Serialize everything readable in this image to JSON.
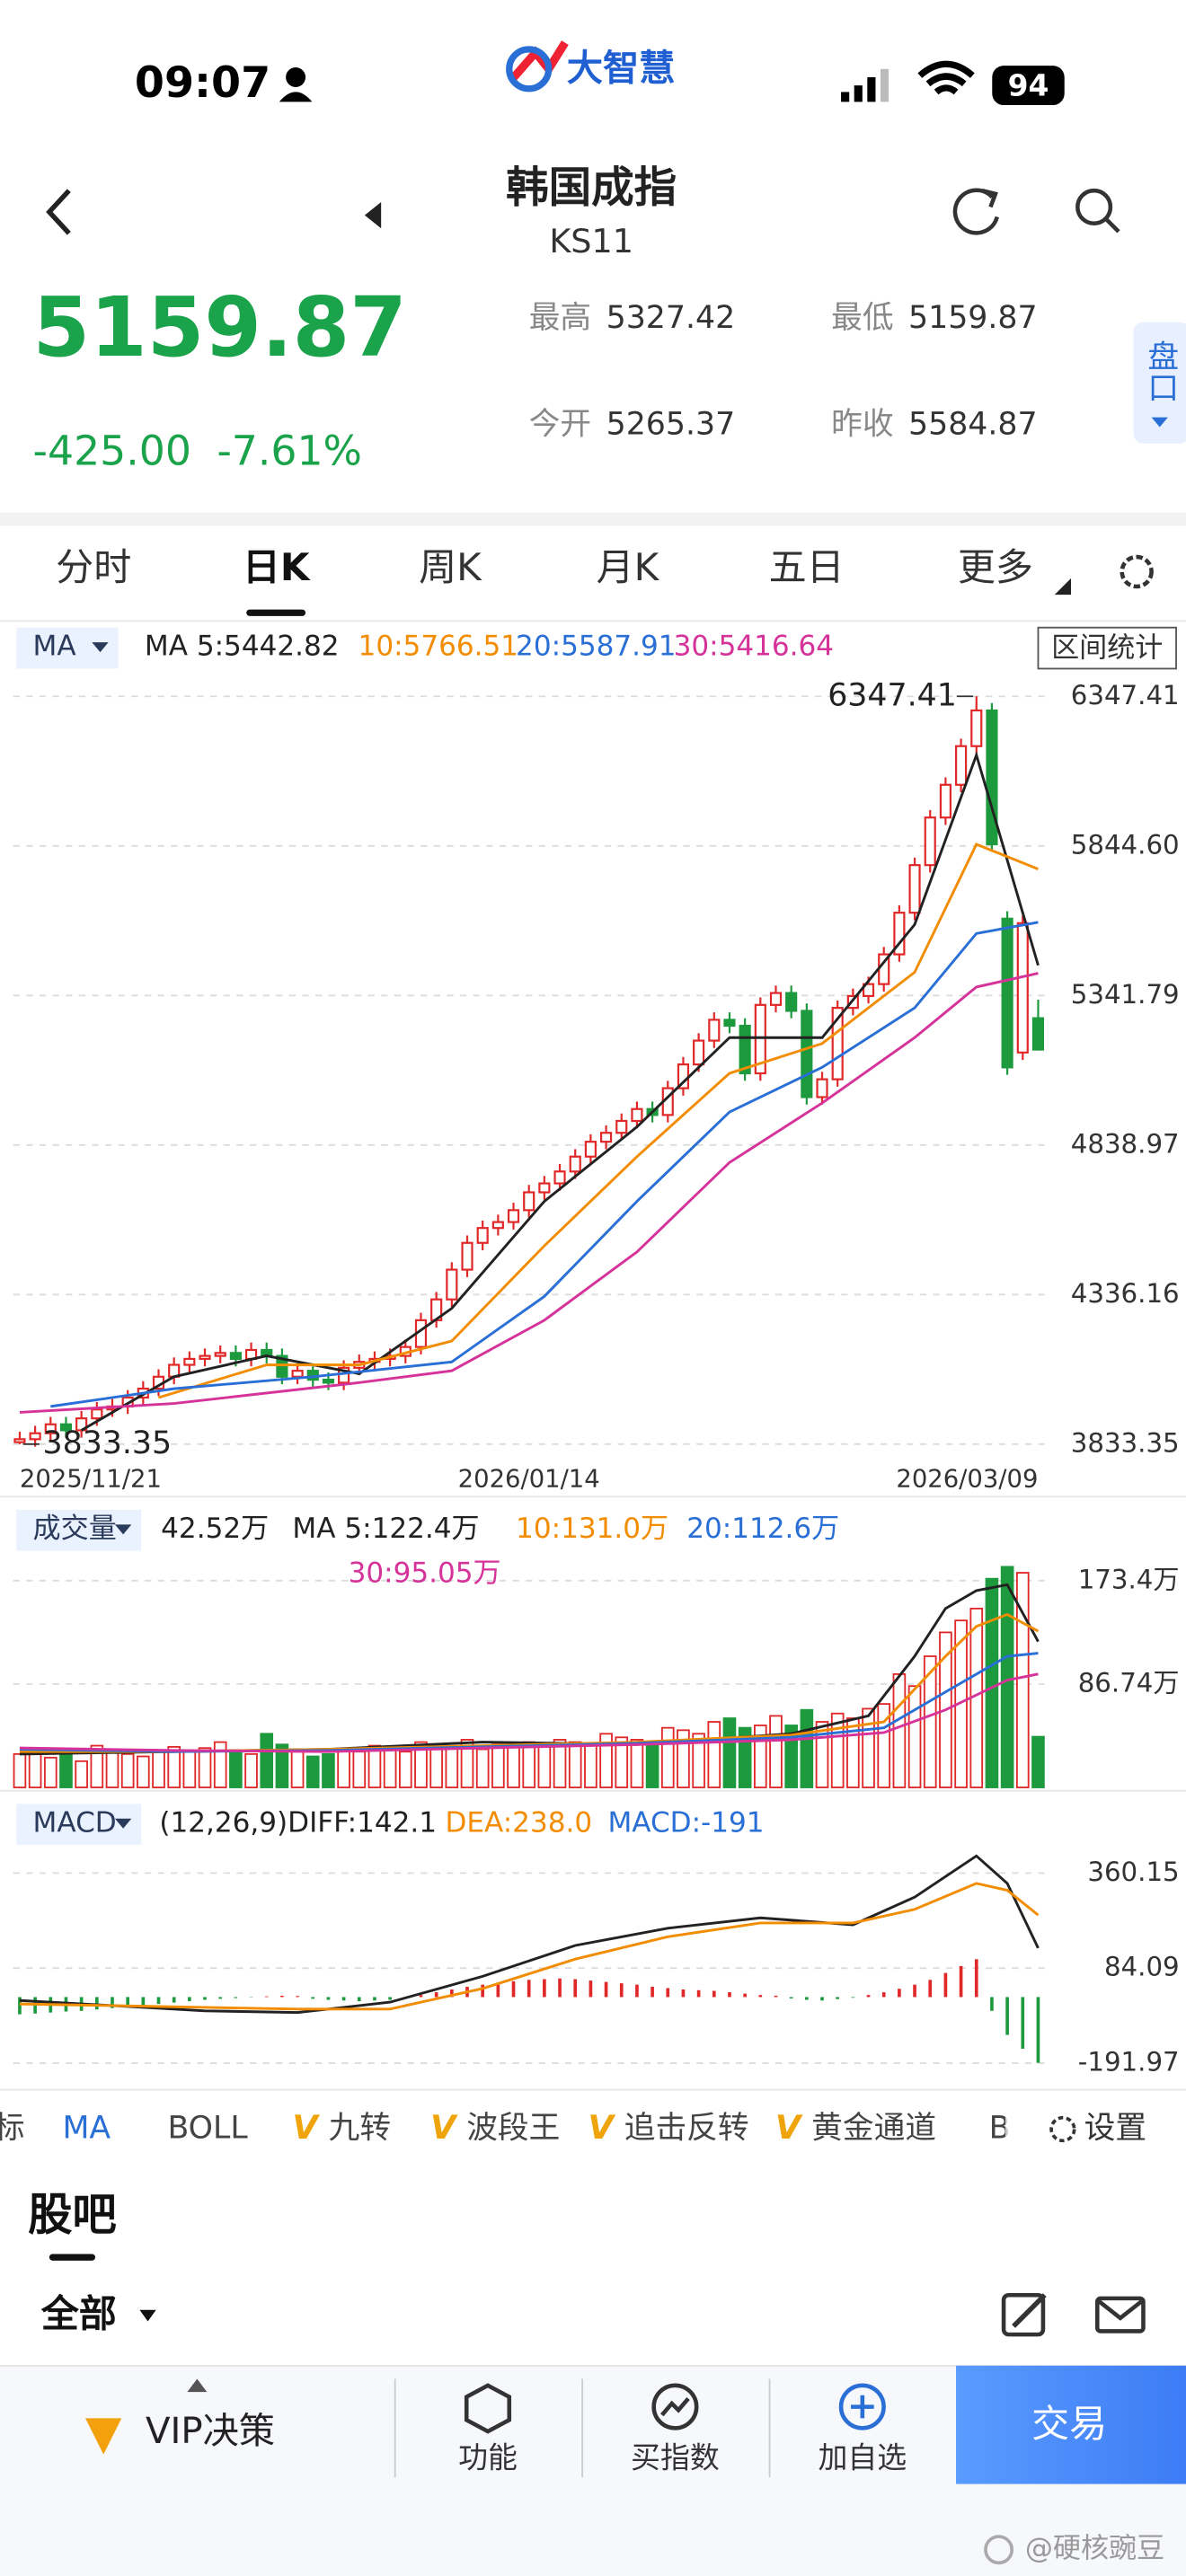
{
  "status_bar": {
    "time": "09:07",
    "battery": "94"
  },
  "logo": "大智慧",
  "header": {
    "title": "韩国成指",
    "code": "KS11",
    "price": "5159.87",
    "change": "-425.00",
    "change_pct": "-7.61%",
    "stats": [
      {
        "label": "最高",
        "value": "5327.42"
      },
      {
        "label": "最低",
        "value": "5159.87"
      },
      {
        "label": "今开",
        "value": "5265.37"
      },
      {
        "label": "昨收",
        "value": "5584.87"
      }
    ],
    "side_tab": "盘口"
  },
  "period_tabs": [
    "分时",
    "日K",
    "周K",
    "月K",
    "五日",
    "更多"
  ],
  "active_tab": 1,
  "chart_data": [
    {
      "type": "candlestick",
      "selector": "MA",
      "range_button": "区间统计",
      "categories": [
        "2025/11/21",
        null,
        null,
        null,
        null,
        null,
        null,
        null,
        null,
        null,
        null,
        null,
        null,
        null,
        null,
        null,
        null,
        null,
        null,
        null,
        null,
        null,
        null,
        null,
        null,
        null,
        null,
        null,
        null,
        null,
        null,
        null,
        null,
        "2026/01/14",
        null,
        null,
        null,
        null,
        null,
        null,
        null,
        null,
        null,
        null,
        null,
        null,
        null,
        null,
        null,
        null,
        null,
        null,
        null,
        null,
        null,
        null,
        null,
        null,
        null,
        null,
        null,
        null,
        null,
        null,
        null,
        null,
        "2026/03/09"
      ],
      "open": [
        3840,
        3850,
        3870,
        3900,
        3880,
        3920,
        3950,
        3960,
        3990,
        4020,
        4060,
        4100,
        4120,
        4130,
        4140,
        4120,
        4150,
        4130,
        4060,
        4080,
        4050,
        4040,
        4090,
        4110,
        4120,
        4130,
        4160,
        4250,
        4320,
        4420,
        4510,
        4560,
        4580,
        4620,
        4680,
        4710,
        4750,
        4800,
        4850,
        4880,
        4920,
        4960,
        4940,
        5030,
        5110,
        5190,
        5260,
        5240,
        5080,
        5310,
        5350,
        5290,
        5000,
        5060,
        5300,
        5340,
        5380,
        5480,
        5620,
        5780,
        5940,
        6050,
        6180,
        6300,
        5600,
        5150,
        5265.37
      ],
      "high": [
        3875,
        3895,
        3925,
        3925,
        3945,
        3975,
        3985,
        4015,
        4045,
        4085,
        4125,
        4145,
        4155,
        4165,
        4165,
        4175,
        4175,
        4155,
        4105,
        4105,
        4075,
        4115,
        4135,
        4145,
        4155,
        4185,
        4275,
        4345,
        4445,
        4535,
        4585,
        4605,
        4645,
        4705,
        4735,
        4775,
        4825,
        4875,
        4905,
        4945,
        4985,
        4985,
        5055,
        5135,
        5215,
        5285,
        5285,
        5265,
        5335,
        5375,
        5375,
        5315,
        5085,
        5325,
        5365,
        5405,
        5505,
        5645,
        5805,
        5965,
        6075,
        6205,
        6347.41,
        6325,
        5625,
        5610,
        5327.42
      ],
      "low": [
        3833.35,
        3825,
        3845,
        3855,
        3855,
        3895,
        3925,
        3935,
        3965,
        3995,
        4035,
        4075,
        4095,
        4105,
        4095,
        4095,
        4105,
        4035,
        4035,
        4025,
        4015,
        4015,
        4065,
        4085,
        4095,
        4105,
        4135,
        4225,
        4295,
        4395,
        4485,
        4535,
        4555,
        4595,
        4655,
        4685,
        4725,
        4775,
        4825,
        4855,
        4895,
        4915,
        4915,
        5005,
        5085,
        5165,
        5215,
        5055,
        5055,
        5285,
        5265,
        4975,
        4975,
        5035,
        5275,
        5315,
        5355,
        5455,
        5595,
        5755,
        5915,
        6025,
        6155,
        5825,
        5075,
        5125,
        5159.87
      ],
      "close": [
        3850,
        3870,
        3900,
        3880,
        3920,
        3950,
        3960,
        3990,
        4020,
        4060,
        4100,
        4120,
        4130,
        4140,
        4120,
        4150,
        4130,
        4060,
        4080,
        4050,
        4040,
        4090,
        4110,
        4120,
        4130,
        4160,
        4250,
        4320,
        4420,
        4510,
        4560,
        4580,
        4620,
        4680,
        4710,
        4750,
        4800,
        4850,
        4880,
        4920,
        4960,
        4940,
        5030,
        5110,
        5190,
        5260,
        5240,
        5080,
        5310,
        5350,
        5290,
        5000,
        5060,
        5300,
        5340,
        5380,
        5480,
        5620,
        5780,
        5940,
        6050,
        6180,
        6300,
        5850,
        5100,
        5584.87,
        5159.87
      ],
      "up_color": "#e02828",
      "down_color": "#1e9a3e",
      "ylim": [
        3690,
        6435
      ],
      "yticks": [
        6347.41,
        {
          "value": 5844.6,
          "label": "5844.60"
        },
        5341.79,
        4838.97,
        4336.16,
        3833.35
      ],
      "grid": true,
      "annotations": [
        {
          "label": "6347.41",
          "x": 62,
          "value": 6347.41
        },
        {
          "label": "3833.35",
          "x": 0,
          "value": 3833.35
        }
      ],
      "series": [
        {
          "name": "MA 5:5442.82",
          "color": "#222222",
          "x": [
            4,
            10,
            16,
            22,
            28,
            34,
            40,
            46,
            52,
            58,
            62,
            66
          ],
          "values": [
            3880,
            4060,
            4130,
            4070,
            4290,
            4650,
            4900,
            5200,
            5200,
            5580,
            6150,
            5442.82
          ]
        },
        {
          "name": "10:5766.51",
          "color": "#f28c00",
          "x": [
            9,
            16,
            22,
            28,
            34,
            40,
            46,
            52,
            58,
            62,
            66
          ],
          "values": [
            3990,
            4100,
            4100,
            4180,
            4500,
            4800,
            5080,
            5180,
            5420,
            5850,
            5766.51
          ]
        },
        {
          "name": "20:5587.91",
          "color": "#2a6fd6",
          "x": [
            2,
            10,
            19,
            28,
            34,
            40,
            46,
            52,
            58,
            62,
            66
          ],
          "values": [
            3960,
            4020,
            4060,
            4110,
            4330,
            4650,
            4950,
            5100,
            5300,
            5550,
            5587.91
          ]
        },
        {
          "name": "30:5416.64",
          "color": "#d6339a",
          "x": [
            0,
            10,
            22,
            28,
            34,
            40,
            46,
            52,
            58,
            62,
            66
          ],
          "values": [
            3940,
            3970,
            4040,
            4080,
            4250,
            4480,
            4780,
            4980,
            5200,
            5370,
            5416.64
          ]
        }
      ]
    },
    {
      "type": "bar",
      "selector": "成交量",
      "current_label": "42.52万",
      "values": [
        28,
        32,
        25,
        30,
        22,
        35,
        30,
        28,
        26,
        30,
        34,
        30,
        33,
        38,
        30,
        28,
        45,
        36,
        30,
        26,
        28,
        32,
        30,
        35,
        33,
        30,
        38,
        36,
        34,
        40,
        32,
        36,
        34,
        38,
        35,
        40,
        38,
        36,
        45,
        42,
        40,
        38,
        50,
        48,
        45,
        55,
        58,
        50,
        52,
        60,
        52,
        65,
        55,
        62,
        58,
        66,
        70,
        95,
        85,
        110,
        130,
        140,
        150,
        175,
        185,
        180,
        42.52
      ],
      "up_color": "#e02828",
      "down_color": "#1e9a3e",
      "ylim": [
        0,
        197
      ],
      "yticks": [
        {
          "value": 173.4,
          "label": "173.4万"
        },
        {
          "value": 86.74,
          "label": "86.74万"
        }
      ],
      "grid": true,
      "series": [
        {
          "name": "MA 5:122.4万",
          "color": "#222222",
          "x": [
            0,
            10,
            20,
            30,
            40,
            50,
            55,
            58,
            60,
            62,
            64,
            66
          ],
          "values": [
            28,
            30,
            32,
            38,
            36,
            45,
            60,
            110,
            150,
            165,
            170,
            122.4
          ]
        },
        {
          "name": "10:131.0万",
          "color": "#f28c00",
          "x": [
            0,
            10,
            20,
            30,
            40,
            50,
            56,
            60,
            62,
            64,
            66
          ],
          "values": [
            30,
            30,
            32,
            35,
            38,
            44,
            55,
            110,
            135,
            145,
            131.0
          ]
        },
        {
          "name": "20:112.6万",
          "color": "#2a6fd6",
          "x": [
            0,
            10,
            20,
            30,
            40,
            50,
            56,
            60,
            64,
            66
          ],
          "values": [
            32,
            30,
            31,
            34,
            37,
            42,
            50,
            80,
            110,
            112.6
          ]
        },
        {
          "name": "30:95.05万",
          "color": "#d6339a",
          "x": [
            0,
            10,
            20,
            30,
            40,
            50,
            56,
            60,
            64,
            66
          ],
          "values": [
            33,
            31,
            30,
            33,
            36,
            40,
            46,
            65,
            90,
            95.05
          ]
        }
      ]
    },
    {
      "type": "macd",
      "selector": "MACD",
      "histogram": {
        "name": "MACD:-191",
        "legend_color": "#2a6fd6",
        "up_color": "#e02828",
        "down_color": "#1e9a3e",
        "values": [
          -50,
          -48,
          -45,
          -42,
          -40,
          -36,
          -32,
          -28,
          -24,
          -20,
          -16,
          -12,
          -8,
          -5,
          -3,
          -1,
          2,
          4,
          3,
          -5,
          -8,
          -10,
          -12,
          -10,
          -8,
          -4,
          6,
          14,
          22,
          30,
          36,
          42,
          46,
          50,
          52,
          54,
          52,
          48,
          44,
          40,
          36,
          30,
          26,
          22,
          20,
          18,
          14,
          10,
          6,
          4,
          -4,
          -8,
          -10,
          -6,
          -2,
          6,
          14,
          24,
          36,
          50,
          70,
          90,
          110,
          -40,
          -110,
          -150,
          -191
        ]
      },
      "ylim": [
        -250,
        480
      ],
      "yticks": [
        360.15,
        84.09,
        -191.97
      ],
      "grid": true,
      "series": [
        {
          "name": "(12,26,9)DIFF:142.1",
          "color": "#222222",
          "x": [
            0,
            6,
            12,
            18,
            24,
            30,
            36,
            42,
            48,
            54,
            58,
            62,
            64,
            66
          ],
          "values": [
            -10,
            -25,
            -40,
            -45,
            -15,
            60,
            150,
            200,
            230,
            210,
            290,
            410,
            330,
            142.1
          ]
        },
        {
          "name": "DEA:238.0",
          "color": "#f28c00",
          "x": [
            0,
            6,
            12,
            18,
            24,
            30,
            36,
            42,
            48,
            54,
            58,
            62,
            64,
            66
          ],
          "values": [
            -20,
            -25,
            -30,
            -35,
            -35,
            25,
            110,
            175,
            215,
            215,
            255,
            330,
            310,
            238.0
          ]
        }
      ]
    }
  ],
  "indicator_tabs": [
    {
      "label": "标"
    },
    {
      "label": "MA"
    },
    {
      "label": "BOLL"
    },
    {
      "label": "九转",
      "badge": "V"
    },
    {
      "label": "波段王",
      "badge": "V"
    },
    {
      "label": "追击反转",
      "badge": "V"
    },
    {
      "label": "黄金通道",
      "badge": "V"
    },
    {
      "label": "B"
    }
  ],
  "settings": "设置",
  "forum": {
    "title": "股吧",
    "filter": "全部"
  },
  "bottom_bar": {
    "items": [
      "VIP决策",
      "功能",
      "买指数",
      "加自选"
    ],
    "trade": "交易"
  },
  "watermark": "@硬核豌豆"
}
